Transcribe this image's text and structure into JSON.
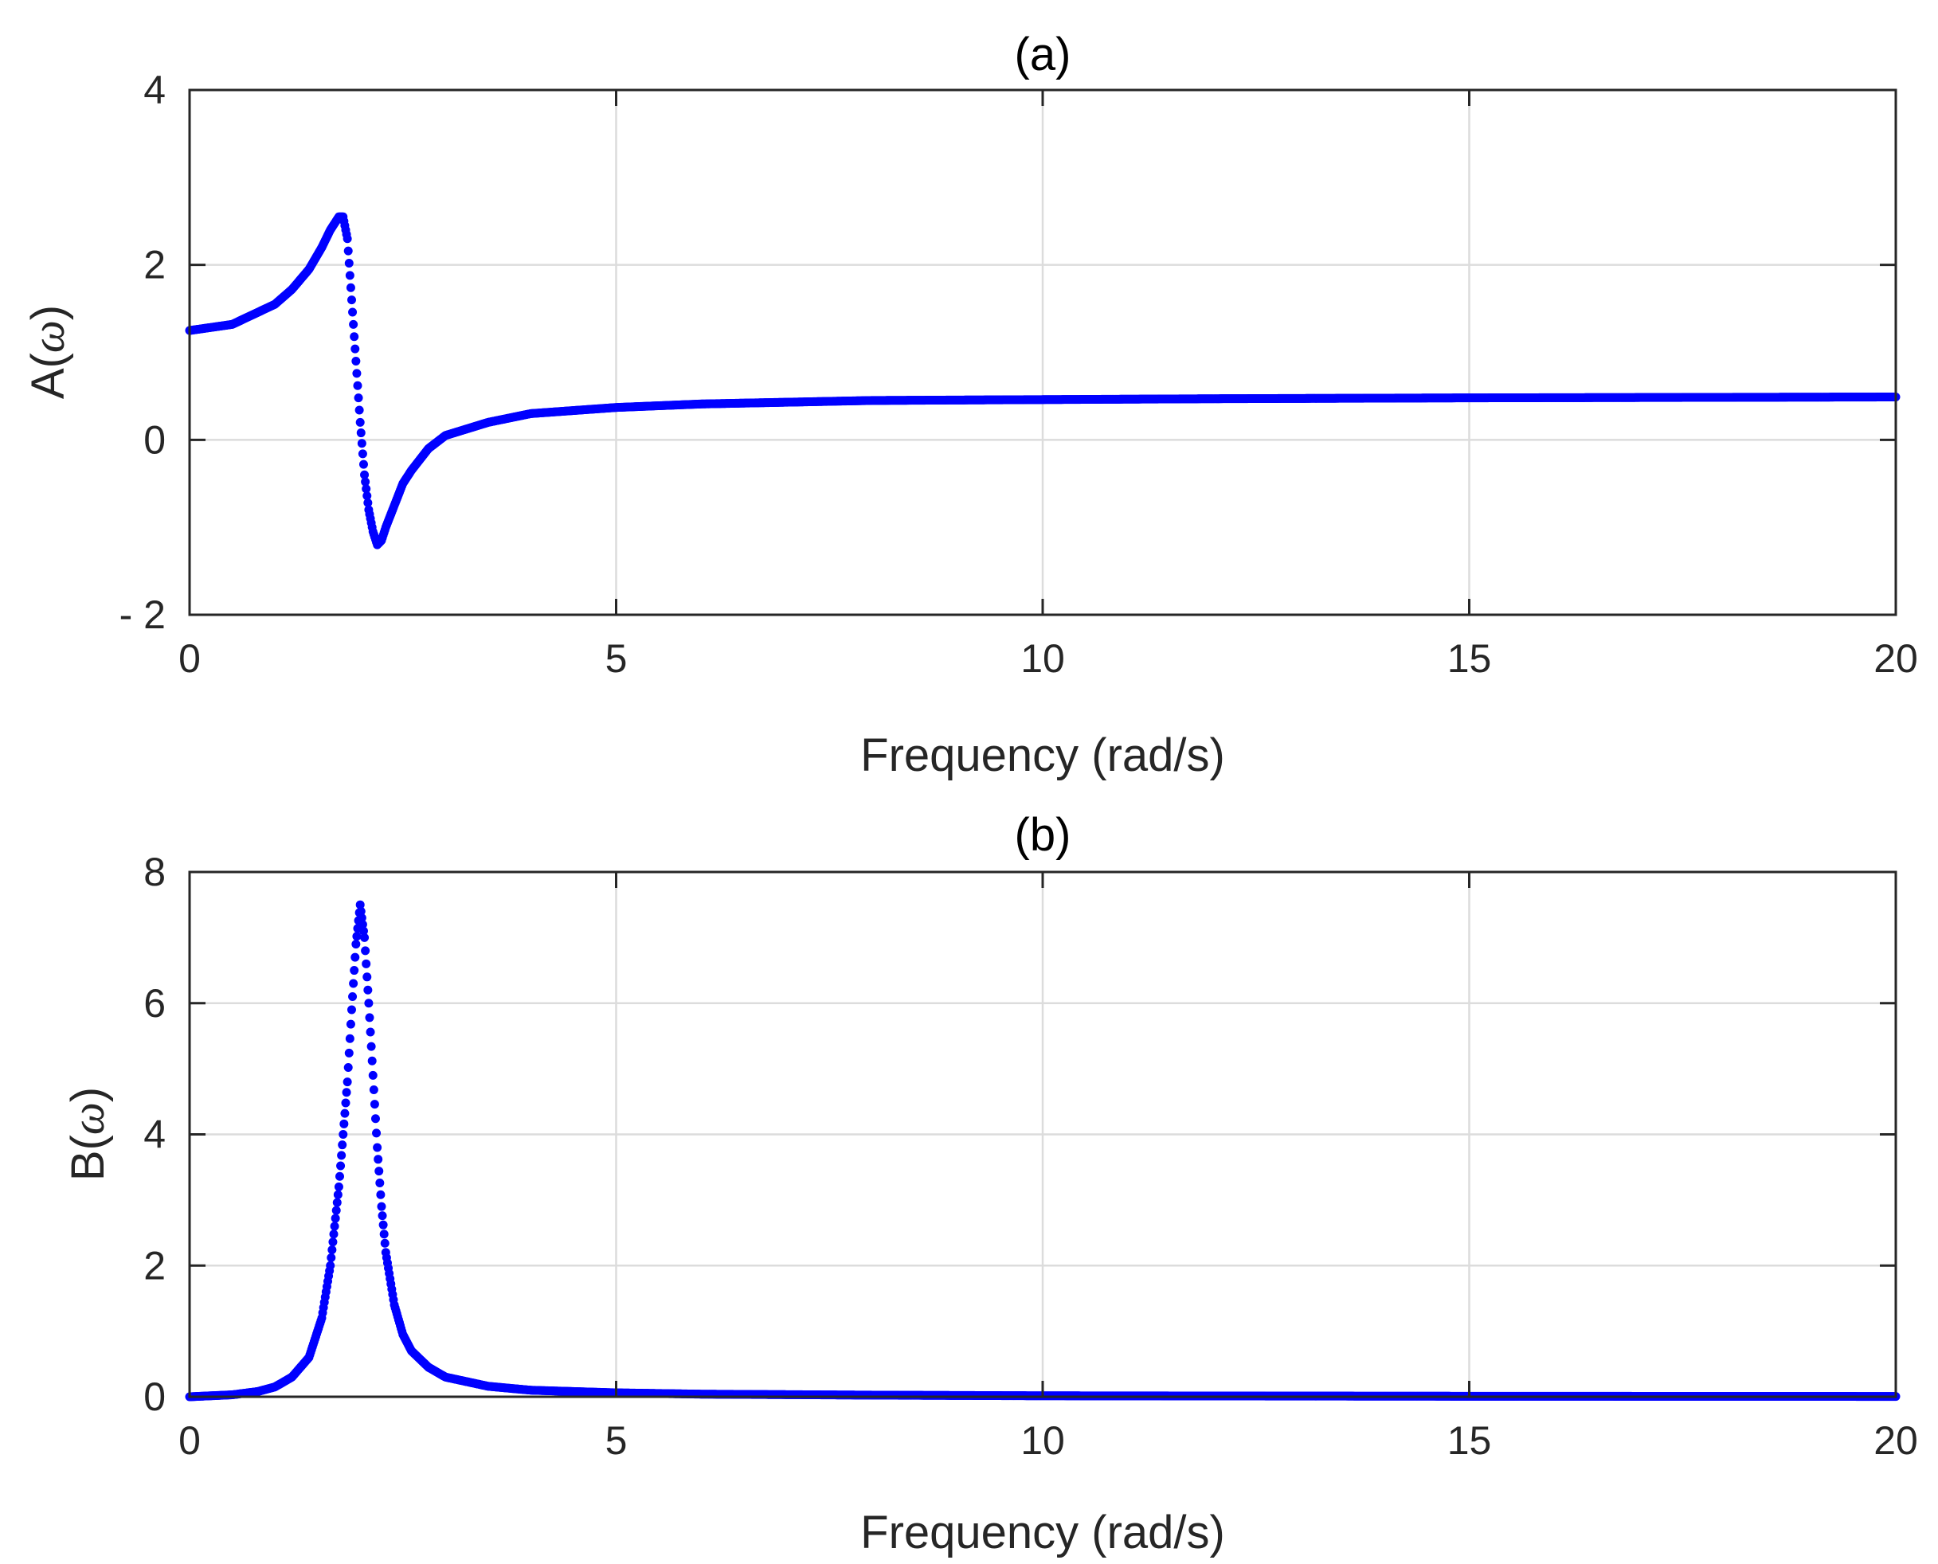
{
  "chart_data": [
    {
      "type": "scatter",
      "title": "(a)",
      "xlabel": "Frequency (rad/s)",
      "ylabel": "A(ω)",
      "ylabel_parts": {
        "prefix": "A(",
        "symbol": "ω",
        "suffix": ")"
      },
      "xlim": [
        0,
        20
      ],
      "ylim": [
        -2,
        4
      ],
      "xticks": [
        0,
        5,
        10,
        15,
        20
      ],
      "yticks": [
        -2,
        0,
        2,
        4
      ],
      "xtick_labels": [
        "0",
        "5",
        "10",
        "15",
        "20"
      ],
      "ytick_labels": [
        "- 2",
        "0",
        "2",
        "4"
      ],
      "grid": true,
      "marker_color": "#0000ff",
      "series": [
        {
          "x": [
            0,
            0.5,
            1.0,
            1.2,
            1.4,
            1.55,
            1.65,
            1.75,
            1.8,
            1.85,
            1.9,
            1.95,
            2.0,
            2.05,
            2.1,
            2.15,
            2.2,
            2.25,
            2.3,
            2.4,
            2.5,
            2.6,
            2.8,
            3.0,
            3.5,
            4.0,
            5.0,
            6.0,
            8.0,
            10.0,
            12.0,
            15.0,
            20.0
          ],
          "y": [
            1.25,
            1.32,
            1.55,
            1.72,
            1.95,
            2.2,
            2.4,
            2.55,
            2.55,
            2.3,
            1.6,
            0.9,
            0.2,
            -0.4,
            -0.8,
            -1.05,
            -1.2,
            -1.15,
            -1.0,
            -0.75,
            -0.5,
            -0.35,
            -0.1,
            0.05,
            0.2,
            0.3,
            0.37,
            0.41,
            0.45,
            0.46,
            0.47,
            0.48,
            0.49
          ]
        }
      ]
    },
    {
      "type": "scatter",
      "title": "(b)",
      "xlabel": "Frequency (rad/s)",
      "ylabel": "B(ω)",
      "ylabel_parts": {
        "prefix": "B(",
        "symbol": "ω",
        "suffix": ")"
      },
      "xlim": [
        0,
        20
      ],
      "ylim": [
        0,
        8
      ],
      "xticks": [
        0,
        5,
        10,
        15,
        20
      ],
      "yticks": [
        0,
        2,
        4,
        6,
        8
      ],
      "xtick_labels": [
        "0",
        "5",
        "10",
        "15",
        "20"
      ],
      "ytick_labels": [
        "0",
        "2",
        "4",
        "6",
        "8"
      ],
      "grid": true,
      "marker_color": "#0000ff",
      "series": [
        {
          "x": [
            0,
            0.5,
            0.8,
            1.0,
            1.2,
            1.4,
            1.55,
            1.65,
            1.75,
            1.85,
            1.9,
            1.95,
            2.0,
            2.05,
            2.1,
            2.15,
            2.2,
            2.25,
            2.3,
            2.4,
            2.5,
            2.6,
            2.8,
            3.0,
            3.5,
            4.0,
            5.0,
            6.0,
            8.0,
            10.0,
            15.0,
            20.0
          ],
          "y": [
            0.0,
            0.03,
            0.08,
            0.15,
            0.3,
            0.6,
            1.2,
            2.0,
            3.2,
            4.8,
            5.9,
            6.9,
            7.5,
            7.0,
            6.0,
            4.9,
            3.8,
            2.9,
            2.2,
            1.4,
            0.95,
            0.7,
            0.45,
            0.3,
            0.16,
            0.1,
            0.06,
            0.04,
            0.025,
            0.015,
            0.008,
            0.005
          ]
        }
      ]
    }
  ]
}
